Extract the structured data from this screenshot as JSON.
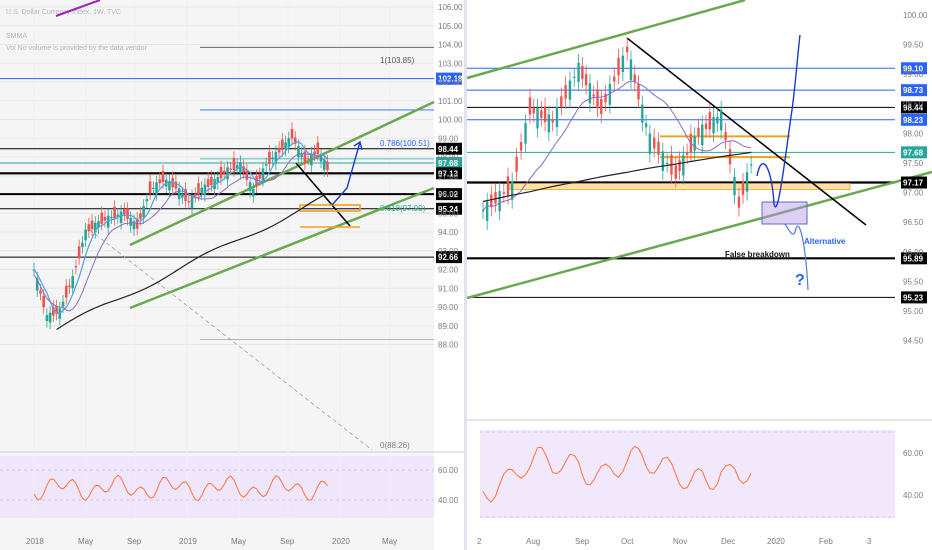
{
  "left_chart": {
    "legend": [
      "U.S. Dollar Currency Index, 1W, TVC",
      "SMMA",
      "Vol  No volume is provided by the data vendor"
    ],
    "yaxis_ticks": [
      "106.00",
      "105.00",
      "104.00",
      "103.00",
      "102.00",
      "101.00",
      "100.00",
      "99.00",
      "98.00",
      "97.00",
      "96.00",
      "95.00",
      "94.00",
      "93.00",
      "92.00",
      "91.00",
      "90.00",
      "89.00",
      "88.00"
    ],
    "xaxis_ticks": [
      "2018",
      "May",
      "Sep",
      "2019",
      "May",
      "Sep",
      "2020",
      "May"
    ],
    "price_tags": [
      {
        "label": "102.18",
        "value": 102.18,
        "color": "#2962ff"
      },
      {
        "label": "98.44",
        "value": 98.44,
        "color": "#000000"
      },
      {
        "label": "97.68",
        "value": 97.68,
        "color": "#26a69a"
      },
      {
        "label": "97.13",
        "value": 97.13,
        "color": "#000000"
      },
      {
        "label": "96.02",
        "value": 96.02,
        "color": "#000000"
      },
      {
        "label": "95.24",
        "value": 95.24,
        "color": "#000000"
      },
      {
        "label": "92.66",
        "value": 92.66,
        "color": "#000000"
      }
    ],
    "fib_labels": [
      {
        "label": "1(103.85)",
        "color": "#555555"
      },
      {
        "label": "0.786(100.51)",
        "color": "#2962ff"
      },
      {
        "label": "0.618(97.90)",
        "color": "#26a69a"
      },
      {
        "label": "0(88.26)",
        "color": "#787b86"
      }
    ],
    "rsi_ticks": [
      "60.00",
      "40.00"
    ]
  },
  "right_chart": {
    "yaxis_ticks": [
      "100.00",
      "99.50",
      "99.00",
      "98.50",
      "98.00",
      "97.50",
      "97.00",
      "96.50",
      "96.00",
      "95.50",
      "95.00",
      "94.50"
    ],
    "xaxis_ticks": [
      "2",
      "Aug",
      "Sep",
      "Oct",
      "Nov",
      "Dec",
      "2020",
      "Feb",
      "3"
    ],
    "price_tags": [
      {
        "label": "99.10",
        "value": 99.1,
        "color": "#2962ff"
      },
      {
        "label": "98.73",
        "value": 98.73,
        "color": "#2962ff"
      },
      {
        "label": "98.44",
        "value": 98.44,
        "color": "#000000"
      },
      {
        "label": "98.23",
        "value": 98.23,
        "color": "#2962ff"
      },
      {
        "label": "97.68",
        "value": 97.68,
        "color": "#26a69a"
      },
      {
        "label": "97.17",
        "value": 97.17,
        "color": "#000000"
      },
      {
        "label": "95.89",
        "value": 95.89,
        "color": "#000000"
      },
      {
        "label": "95.23",
        "value": 95.23,
        "color": "#000000"
      }
    ],
    "annotations": {
      "false_breakdown": "False breakdown",
      "alternative": "Alternative",
      "question": "?"
    },
    "rsi_ticks": [
      "60.00",
      "40.00"
    ]
  },
  "chart_data": [
    {
      "type": "candlestick",
      "title": "U.S. Dollar Currency Index, 1W, TVC",
      "timeframe": "1W",
      "x_range": [
        "2018-01",
        "2020-06"
      ],
      "ylim": [
        87.5,
        106.5
      ],
      "horizontal_levels": [
        102.18,
        98.44,
        97.68,
        97.13,
        96.02,
        95.24,
        92.66
      ],
      "fibonacci": [
        {
          "ratio": "1",
          "value": 103.85
        },
        {
          "ratio": "0.786",
          "value": 100.51
        },
        {
          "ratio": "0.618",
          "value": 97.9
        },
        {
          "ratio": "0",
          "value": 88.26
        }
      ],
      "close_path": [
        {
          "x": "2018-01",
          "y": 92.0
        },
        {
          "x": "2018-02",
          "y": 89.5
        },
        {
          "x": "2018-03",
          "y": 89.8
        },
        {
          "x": "2018-04",
          "y": 91.5
        },
        {
          "x": "2018-05",
          "y": 94.0
        },
        {
          "x": "2018-06",
          "y": 94.5
        },
        {
          "x": "2018-07",
          "y": 94.8
        },
        {
          "x": "2018-08",
          "y": 95.0
        },
        {
          "x": "2018-09",
          "y": 94.3
        },
        {
          "x": "2018-10",
          "y": 96.2
        },
        {
          "x": "2018-11",
          "y": 96.8
        },
        {
          "x": "2018-12",
          "y": 96.4
        },
        {
          "x": "2019-01",
          "y": 95.6
        },
        {
          "x": "2019-02",
          "y": 96.3
        },
        {
          "x": "2019-03",
          "y": 96.7
        },
        {
          "x": "2019-04",
          "y": 97.3
        },
        {
          "x": "2019-05",
          "y": 97.6
        },
        {
          "x": "2019-06",
          "y": 96.2
        },
        {
          "x": "2019-07",
          "y": 97.6
        },
        {
          "x": "2019-08",
          "y": 98.3
        },
        {
          "x": "2019-09",
          "y": 99.1
        },
        {
          "x": "2019-10",
          "y": 97.8
        },
        {
          "x": "2019-11",
          "y": 98.3
        },
        {
          "x": "2019-12",
          "y": 97.1
        }
      ],
      "rsi": {
        "levels": [
          60,
          40
        ]
      }
    },
    {
      "type": "candlestick",
      "timeframe": "1D",
      "x_range": [
        "2019-07",
        "2020-03"
      ],
      "ylim": [
        94.0,
        100.2
      ],
      "horizontal_levels": [
        99.1,
        98.73,
        98.44,
        98.23,
        97.68,
        97.17,
        95.89,
        95.23
      ],
      "close_path": [
        {
          "x": "2019-07-02",
          "y": 96.7
        },
        {
          "x": "2019-07-20",
          "y": 97.1
        },
        {
          "x": "2019-08-01",
          "y": 98.4
        },
        {
          "x": "2019-08-15",
          "y": 98.2
        },
        {
          "x": "2019-09-01",
          "y": 99.1
        },
        {
          "x": "2019-09-15",
          "y": 98.4
        },
        {
          "x": "2019-10-01",
          "y": 99.4
        },
        {
          "x": "2019-10-15",
          "y": 97.9
        },
        {
          "x": "2019-10-31",
          "y": 97.3
        },
        {
          "x": "2019-11-15",
          "y": 98.0
        },
        {
          "x": "2019-11-29",
          "y": 98.3
        },
        {
          "x": "2019-12-10",
          "y": 96.8
        },
        {
          "x": "2019-12-20",
          "y": 97.7
        }
      ],
      "annotations": [
        "False breakdown",
        "Alternative",
        "?"
      ],
      "rsi": {
        "levels": [
          60,
          40
        ]
      }
    }
  ]
}
